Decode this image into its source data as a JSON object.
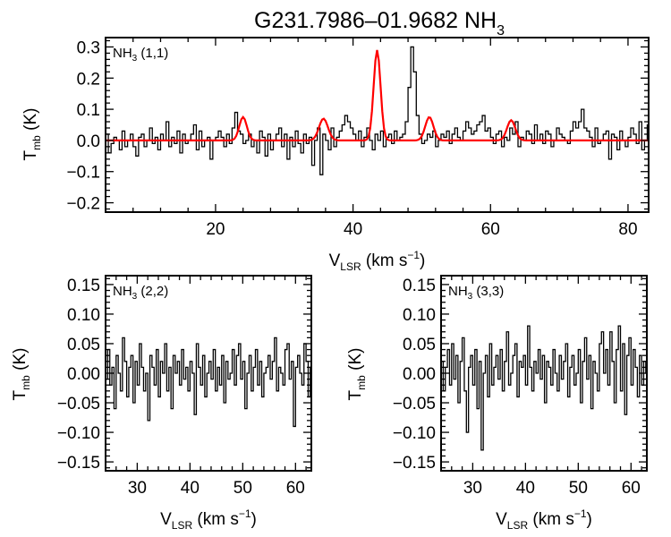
{
  "title": {
    "main": "G231.7986–01.9682 NH",
    "sub": "3"
  },
  "chart_data": [
    {
      "type": "line",
      "panel_label": {
        "main": "NH",
        "sub": "3",
        "rest": " (1,1)"
      },
      "xlabel": {
        "main": "V",
        "sub": "LSR",
        "rest": " (km s",
        "exp": "−1",
        "close": ")"
      },
      "ylabel": {
        "main": "T",
        "sub": "mb",
        "rest": " (K)"
      },
      "xlim": [
        4,
        83
      ],
      "ylim": [
        -0.23,
        0.33
      ],
      "xticks": [
        20,
        40,
        60,
        80
      ],
      "xtick_labels": [
        "20",
        "40",
        "60",
        "80"
      ],
      "yticks": [
        -0.2,
        -0.1,
        0.0,
        0.1,
        0.2,
        0.3
      ],
      "ytick_labels": [
        "−0.2",
        "−0.1",
        "0.0",
        "0.1",
        "0.2",
        "0.3"
      ],
      "series": [
        {
          "name": "spectrum",
          "color": "#000000",
          "x0": 4.0,
          "dx": 0.4,
          "values": [
            0.02,
            -0.04,
            -0.01,
            0.01,
            0.0,
            -0.03,
            0.03,
            -0.02,
            0.0,
            0.02,
            -0.02,
            -0.05,
            0.01,
            0.02,
            -0.02,
            0.0,
            0.04,
            -0.01,
            0.01,
            -0.03,
            0.02,
            0.0,
            0.06,
            -0.02,
            0.01,
            -0.01,
            0.03,
            -0.04,
            0.02,
            -0.01,
            0.0,
            0.02,
            0.05,
            -0.03,
            0.03,
            -0.02,
            0.0,
            0.01,
            -0.06,
            0.0,
            0.01,
            0.03,
            0.01,
            -0.02,
            0.02,
            -0.01,
            0.04,
            0.09,
            0.03,
            0.02,
            -0.01,
            0.0,
            0.02,
            -0.02,
            0.0,
            -0.04,
            0.03,
            0.01,
            -0.05,
            0.02,
            -0.03,
            0.0,
            0.02,
            0.04,
            -0.02,
            0.02,
            -0.06,
            0.01,
            -0.02,
            0.03,
            -0.01,
            -0.04,
            0.02,
            -0.01,
            0.01,
            -0.08,
            0.0,
            0.04,
            -0.11,
            0.02,
            0.0,
            -0.03,
            0.04,
            -0.02,
            0.01,
            0.03,
            0.05,
            0.08,
            0.06,
            0.04,
            0.02,
            0.0,
            0.03,
            -0.02,
            0.01,
            0.04,
            0.0,
            -0.03,
            0.02,
            0.0,
            0.03,
            -0.02,
            0.01,
            0.02,
            -0.01,
            0.03,
            0.0,
            0.01,
            0.02,
            0.06,
            0.17,
            0.3,
            0.22,
            0.08,
            0.02,
            -0.01,
            0.0,
            0.02,
            0.01,
            0.03,
            -0.02,
            0.0,
            0.02,
            0.01,
            0.03,
            -0.01,
            0.02,
            0.04,
            0.01,
            0.0,
            0.03,
            0.06,
            0.04,
            0.02,
            0.03,
            0.05,
            0.06,
            0.08,
            0.03,
            0.04,
            0.01,
            -0.01,
            0.02,
            0.03,
            -0.02,
            0.01,
            0.0,
            0.04,
            0.02,
            0.06,
            -0.02,
            0.01,
            0.0,
            0.03,
            0.02,
            -0.01,
            0.05,
            0.0,
            0.02,
            -0.01,
            0.03,
            0.02,
            -0.02,
            0.0,
            0.04,
            0.02,
            0.01,
            0.0,
            -0.01,
            0.03,
            0.06,
            0.04,
            0.06,
            0.1,
            0.04,
            0.03,
            0.01,
            -0.02,
            0.04,
            -0.01,
            0.0,
            0.02,
            0.03,
            -0.06,
            0.02,
            0.01,
            -0.03,
            0.03,
            0.0,
            -0.02,
            0.01,
            0.04,
            0.02,
            -0.01,
            0.06,
            -0.03,
            0.0,
            0.05,
            -0.06,
            0.04,
            -0.01,
            0.02,
            -0.03,
            0.03,
            0.0
          ]
        },
        {
          "name": "hyperfine fit",
          "color": "#ff0000",
          "baseline": 0.0,
          "x_step": 0.25,
          "components": [
            {
              "center": 24.0,
              "amplitude": 0.075,
              "sigma": 0.55
            },
            {
              "center": 35.7,
              "amplitude": 0.07,
              "sigma": 0.65
            },
            {
              "center": 43.5,
              "amplitude": 0.29,
              "sigma": 0.5
            },
            {
              "center": 51.1,
              "amplitude": 0.075,
              "sigma": 0.6
            },
            {
              "center": 63.0,
              "amplitude": 0.065,
              "sigma": 0.6
            }
          ]
        }
      ]
    },
    {
      "type": "line",
      "panel_label": {
        "main": "NH",
        "sub": "3",
        "rest": " (2,2)"
      },
      "xlabel": {
        "main": "V",
        "sub": "LSR",
        "rest": " (km s",
        "exp": "−1",
        "close": ")"
      },
      "ylabel": {
        "main": "T",
        "sub": "mb",
        "rest": " (K)"
      },
      "xlim": [
        24,
        63
      ],
      "ylim": [
        -0.165,
        0.165
      ],
      "xticks": [
        30,
        40,
        50,
        60
      ],
      "xtick_labels": [
        "30",
        "40",
        "50",
        "60"
      ],
      "yticks": [
        -0.15,
        -0.1,
        -0.05,
        0.0,
        0.05,
        0.1,
        0.15
      ],
      "ytick_labels": [
        "−0.15",
        "−0.10",
        "−0.05",
        "0.00",
        "0.05",
        "0.10",
        "0.15"
      ],
      "series": [
        {
          "name": "spectrum",
          "color": "#000000",
          "x0": 24.0,
          "dx": 0.4,
          "values": [
            -0.01,
            0.04,
            -0.02,
            0.01,
            -0.06,
            0.03,
            0.0,
            -0.03,
            0.06,
            0.02,
            -0.04,
            0.01,
            0.03,
            -0.05,
            0.02,
            -0.02,
            0.05,
            0.01,
            -0.03,
            0.0,
            -0.08,
            0.03,
            0.01,
            -0.02,
            0.04,
            -0.04,
            0.02,
            0.0,
            0.05,
            -0.03,
            0.01,
            -0.06,
            0.03,
            0.0,
            0.02,
            -0.02,
            0.04,
            -0.01,
            0.01,
            -0.03,
            0.02,
            0.0,
            -0.07,
            0.05,
            0.01,
            -0.02,
            0.03,
            -0.04,
            0.0,
            0.02,
            -0.01,
            0.04,
            -0.03,
            0.01,
            -0.02,
            0.03,
            -0.05,
            0.02,
            -0.01,
            0.0,
            0.04,
            -0.02,
            0.03,
            0.05,
            -0.01,
            0.02,
            -0.06,
            0.0,
            0.03,
            -0.03,
            0.01,
            0.04,
            -0.02,
            0.02,
            -0.04,
            0.0,
            0.01,
            0.03,
            -0.01,
            0.02,
            0.06,
            -0.03,
            0.01,
            0.0,
            -0.02,
            0.04,
            0.05,
            -0.01,
            0.02,
            -0.09,
            0.01,
            0.03,
            0.0,
            -0.02,
            0.05,
            0.02,
            -0.04,
            0.01,
            0.03
          ]
        }
      ]
    },
    {
      "type": "line",
      "panel_label": {
        "main": "NH",
        "sub": "3",
        "rest": " (3,3)"
      },
      "xlabel": {
        "main": "V",
        "sub": "LSR",
        "rest": " (km s",
        "exp": "−1",
        "close": ")"
      },
      "ylabel": {
        "main": "T",
        "sub": "mb",
        "rest": " (K)"
      },
      "xlim": [
        24,
        63
      ],
      "ylim": [
        -0.165,
        0.165
      ],
      "xticks": [
        30,
        40,
        50,
        60
      ],
      "xtick_labels": [
        "30",
        "40",
        "50",
        "60"
      ],
      "yticks": [
        -0.15,
        -0.1,
        -0.05,
        0.0,
        0.05,
        0.1,
        0.15
      ],
      "ytick_labels": [
        "−0.15",
        "−0.10",
        "−0.05",
        "0.00",
        "0.05",
        "0.10",
        "0.15"
      ],
      "series": [
        {
          "name": "spectrum",
          "color": "#000000",
          "x0": 24.0,
          "dx": 0.4,
          "values": [
            0.02,
            -0.03,
            0.01,
            0.04,
            -0.02,
            0.05,
            -0.01,
            0.03,
            -0.05,
            0.02,
            0.06,
            -0.03,
            -0.1,
            0.01,
            0.03,
            -0.02,
            0.04,
            -0.06,
            0.02,
            -0.13,
            0.0,
            0.03,
            -0.04,
            0.05,
            -0.02,
            0.01,
            0.03,
            -0.01,
            0.04,
            -0.03,
            0.02,
            0.07,
            -0.02,
            0.0,
            0.03,
            0.05,
            -0.04,
            0.02,
            0.01,
            0.03,
            -0.02,
            0.08,
            0.01,
            -0.03,
            0.02,
            0.0,
            0.04,
            -0.01,
            0.03,
            -0.05,
            0.02,
            0.01,
            -0.02,
            0.04,
            0.0,
            -0.03,
            0.03,
            -0.01,
            0.02,
            0.05,
            -0.04,
            0.01,
            0.03,
            -0.02,
            0.0,
            0.04,
            -0.05,
            0.02,
            0.06,
            -0.01,
            0.03,
            -0.06,
            0.02,
            0.0,
            -0.03,
            0.05,
            0.07,
            0.0,
            0.04,
            -0.02,
            0.07,
            0.02,
            -0.05,
            0.04,
            0.08,
            -0.03,
            0.05,
            -0.07,
            0.03,
            0.06,
            -0.02,
            0.04,
            0.01,
            -0.04,
            0.03,
            -0.02,
            0.02,
            0.0,
            -0.03
          ]
        }
      ]
    }
  ]
}
